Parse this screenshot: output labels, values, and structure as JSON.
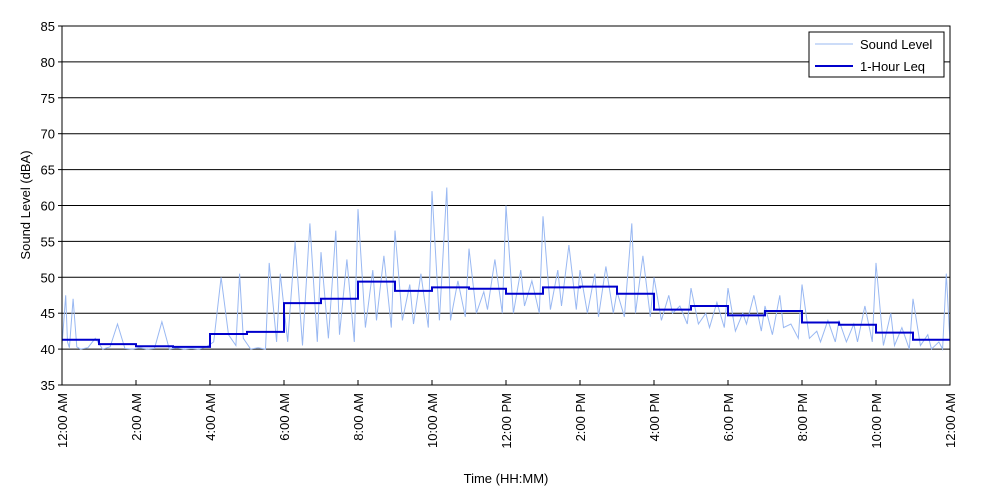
{
  "chart_data": {
    "type": "line",
    "title": "",
    "xlabel": "Time (HH:MM)",
    "ylabel": "Sound Level (dBA)",
    "xlim": [
      0,
      24
    ],
    "ylim": [
      35,
      85
    ],
    "grid": "horizontal",
    "legend_position": "top-right",
    "y_ticks": [
      35,
      40,
      45,
      50,
      55,
      60,
      65,
      70,
      75,
      80,
      85
    ],
    "x_ticks": [
      0,
      2,
      4,
      6,
      8,
      10,
      12,
      14,
      16,
      18,
      20,
      22,
      24
    ],
    "x_tick_labels": [
      "12:00 AM",
      "2:00 AM",
      "4:00 AM",
      "6:00 AM",
      "8:00 AM",
      "10:00 AM",
      "12:00 PM",
      "2:00 PM",
      "4:00 PM",
      "6:00 PM",
      "8:00 PM",
      "10:00 PM",
      "12:00 AM"
    ],
    "series": [
      {
        "name": "Sound Level",
        "color": "#99b8f2",
        "x": [
          0.0,
          0.1,
          0.15,
          0.2,
          0.3,
          0.4,
          0.5,
          0.7,
          0.9,
          1.1,
          1.3,
          1.5,
          1.7,
          1.9,
          2.1,
          2.3,
          2.5,
          2.7,
          2.9,
          3.1,
          3.3,
          3.5,
          3.7,
          3.9,
          4.1,
          4.3,
          4.5,
          4.7,
          4.8,
          4.9,
          5.1,
          5.3,
          5.5,
          5.6,
          5.8,
          5.9,
          6.1,
          6.3,
          6.5,
          6.7,
          6.9,
          7.0,
          7.2,
          7.4,
          7.5,
          7.7,
          7.9,
          8.0,
          8.2,
          8.4,
          8.5,
          8.7,
          8.9,
          9.0,
          9.2,
          9.4,
          9.5,
          9.7,
          9.9,
          10.0,
          10.2,
          10.4,
          10.5,
          10.7,
          10.9,
          11.0,
          11.2,
          11.4,
          11.5,
          11.7,
          11.9,
          12.0,
          12.2,
          12.4,
          12.5,
          12.7,
          12.9,
          13.0,
          13.2,
          13.4,
          13.5,
          13.7,
          13.9,
          14.0,
          14.2,
          14.4,
          14.5,
          14.7,
          14.9,
          15.0,
          15.2,
          15.4,
          15.5,
          15.7,
          15.9,
          16.0,
          16.2,
          16.4,
          16.5,
          16.7,
          16.9,
          17.0,
          17.2,
          17.4,
          17.5,
          17.7,
          17.9,
          18.0,
          18.2,
          18.4,
          18.5,
          18.7,
          18.9,
          19.0,
          19.2,
          19.4,
          19.5,
          19.7,
          19.9,
          20.0,
          20.2,
          20.4,
          20.5,
          20.7,
          20.9,
          21.0,
          21.2,
          21.4,
          21.5,
          21.7,
          21.9,
          22.0,
          22.2,
          22.4,
          22.5,
          22.7,
          22.9,
          23.0,
          23.2,
          23.4,
          23.5,
          23.7,
          23.8,
          23.9,
          24.0
        ],
        "y": [
          40.5,
          47.5,
          41.0,
          40.2,
          47.0,
          40.3,
          40.0,
          40.2,
          41.5,
          40.0,
          40.3,
          43.5,
          40.1,
          40.0,
          40.2,
          40.0,
          40.1,
          43.8,
          40.0,
          40.2,
          40.0,
          40.1,
          40.0,
          40.3,
          41.0,
          50.0,
          42.0,
          40.5,
          50.5,
          41.5,
          40.0,
          40.2,
          40.0,
          52.0,
          41.0,
          50.5,
          41.0,
          55.0,
          40.5,
          57.5,
          41.0,
          53.5,
          41.5,
          56.5,
          42.0,
          52.5,
          41.0,
          59.5,
          43.0,
          51.0,
          44.0,
          53.0,
          43.0,
          56.5,
          44.0,
          49.0,
          43.5,
          50.5,
          43.0,
          62.0,
          44.0,
          62.5,
          44.0,
          49.5,
          44.5,
          54.0,
          45.0,
          48.0,
          45.5,
          52.5,
          45.0,
          60.0,
          45.0,
          51.0,
          46.0,
          49.5,
          45.0,
          58.5,
          45.5,
          51.0,
          46.0,
          54.5,
          45.5,
          51.0,
          45.0,
          50.5,
          44.5,
          51.5,
          45.0,
          48.0,
          44.5,
          57.5,
          45.0,
          53.0,
          44.5,
          50.0,
          44.0,
          47.5,
          45.0,
          46.0,
          43.5,
          48.5,
          43.5,
          45.0,
          43.0,
          46.5,
          43.0,
          48.5,
          42.5,
          45.0,
          43.5,
          47.5,
          42.5,
          46.0,
          42.0,
          47.5,
          43.0,
          43.5,
          41.5,
          49.0,
          41.5,
          42.5,
          41.0,
          44.0,
          41.0,
          44.0,
          41.0,
          43.5,
          41.0,
          46.0,
          41.0,
          52.0,
          40.5,
          45.0,
          40.5,
          43.0,
          40.0,
          47.0,
          40.5,
          42.0,
          40.0,
          41.0,
          40.0,
          50.5,
          41.0
        ]
      },
      {
        "name": "1-Hour Leq",
        "color": "#0000cc",
        "step": true,
        "x": [
          0,
          1,
          2,
          3,
          4,
          5,
          6,
          7,
          8,
          9,
          10,
          11,
          12,
          13,
          14,
          15,
          16,
          17,
          18,
          19,
          20,
          21,
          22,
          23,
          24
        ],
        "y": [
          41.3,
          40.7,
          40.4,
          40.3,
          42.1,
          42.4,
          46.4,
          47.0,
          49.4,
          48.1,
          48.6,
          48.4,
          47.7,
          48.6,
          48.7,
          47.7,
          45.5,
          46.0,
          44.7,
          45.3,
          43.7,
          43.4,
          42.3,
          41.3,
          41.3
        ]
      }
    ]
  }
}
